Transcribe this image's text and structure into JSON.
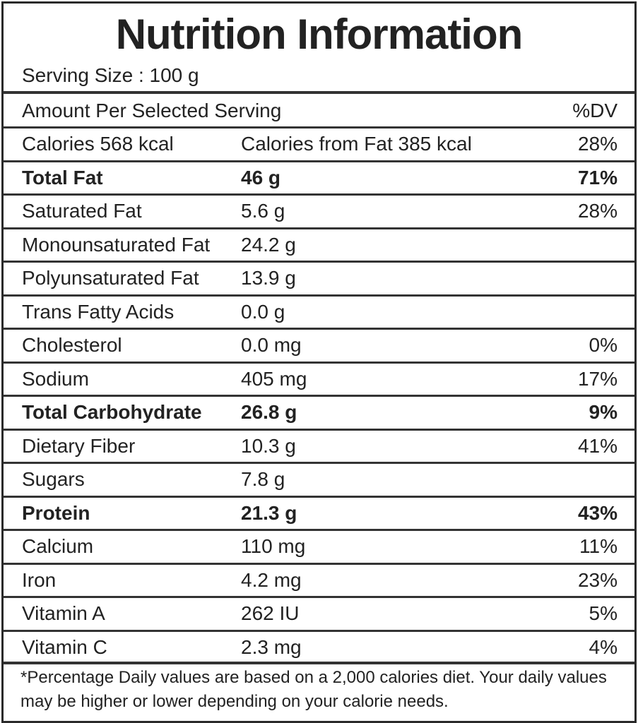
{
  "title": "Nutrition Information",
  "serving_size": "Serving Size : 100 g",
  "header": {
    "amount_label": "Amount Per Selected Serving",
    "dv_label": "%DV"
  },
  "rows": [
    {
      "name": "Calories 568 kcal",
      "amount": "Calories from Fat 385 kcal",
      "dv": "28%",
      "bold": false
    },
    {
      "name": "Total Fat",
      "amount": "46 g",
      "dv": "71%",
      "bold": true
    },
    {
      "name": "Saturated Fat",
      "amount": "5.6 g",
      "dv": "28%",
      "bold": false
    },
    {
      "name": "Monounsaturated Fat",
      "amount": "24.2 g",
      "dv": "",
      "bold": false
    },
    {
      "name": "Polyunsaturated Fat",
      "amount": "13.9 g",
      "dv": "",
      "bold": false
    },
    {
      "name": "Trans Fatty Acids",
      "amount": "0.0 g",
      "dv": "",
      "bold": false
    },
    {
      "name": "Cholesterol",
      "amount": "0.0 mg",
      "dv": "0%",
      "bold": false
    },
    {
      "name": "Sodium",
      "amount": "405 mg",
      "dv": "17%",
      "bold": false
    },
    {
      "name": "Total Carbohydrate",
      "amount": "26.8 g",
      "dv": "9%",
      "bold": true
    },
    {
      "name": "Dietary Fiber",
      "amount": "10.3 g",
      "dv": "41%",
      "bold": false
    },
    {
      "name": "Sugars",
      "amount": "7.8 g",
      "dv": "",
      "bold": false
    },
    {
      "name": "Protein",
      "amount": "21.3 g",
      "dv": "43%",
      "bold": true
    },
    {
      "name": "Calcium",
      "amount": "110 mg",
      "dv": "11%",
      "bold": false
    },
    {
      "name": "Iron",
      "amount": "4.2 mg",
      "dv": "23%",
      "bold": false
    },
    {
      "name": "Vitamin A",
      "amount": "262 IU",
      "dv": "5%",
      "bold": false
    },
    {
      "name": "Vitamin C",
      "amount": "2.3 mg",
      "dv": "4%",
      "bold": false
    }
  ],
  "footnote": "*Percentage Daily values are based on a 2,000 calories diet. Your daily values may be higher or lower depending on your calorie needs."
}
